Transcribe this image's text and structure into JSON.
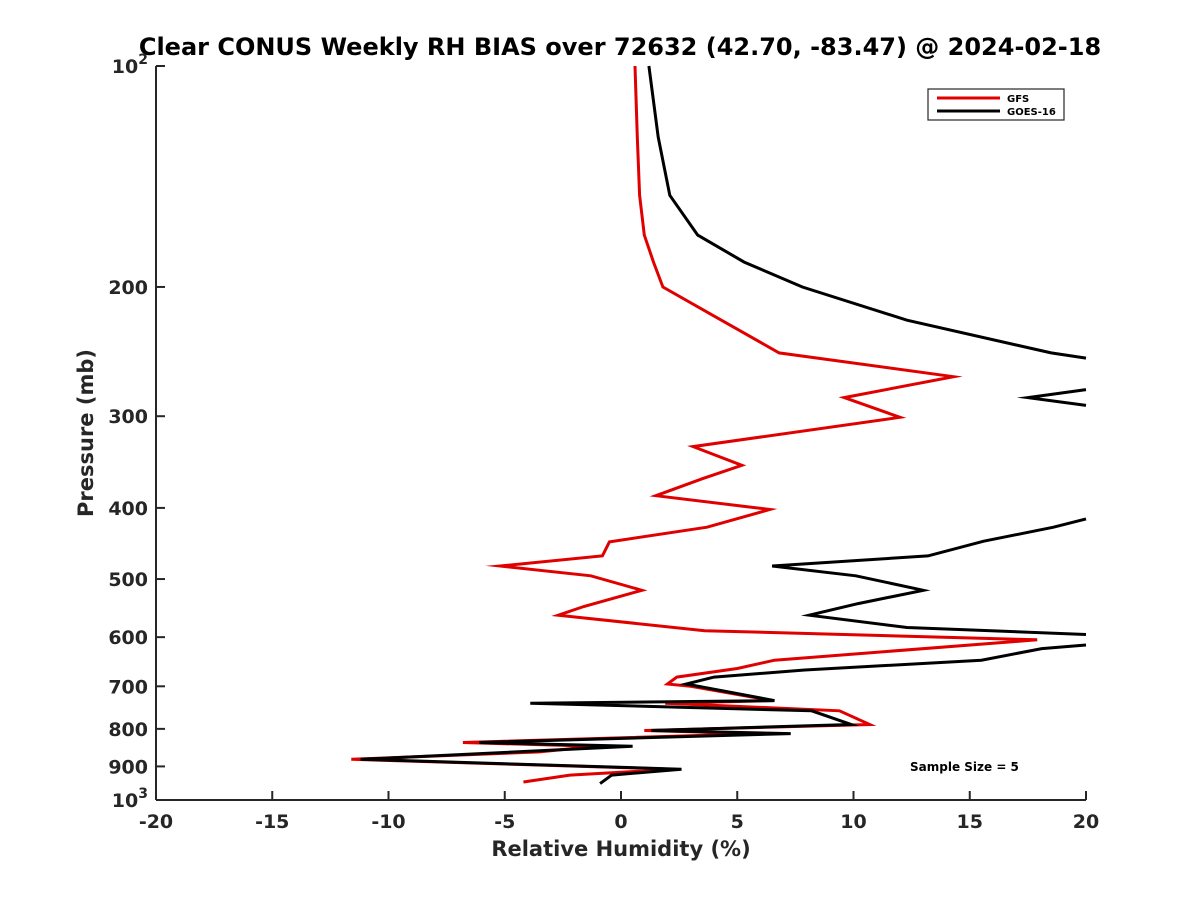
{
  "chart_data": {
    "type": "line",
    "title": "Clear CONUS Weekly RH BIAS over 72632 (42.70, -83.47) @ 2024-02-18",
    "xlabel": "Relative Humidity (%)",
    "ylabel": "Pressure (mb)",
    "xlim": [
      -20,
      20
    ],
    "ylim": [
      100,
      1000
    ],
    "y_scale": "log",
    "y_reversed": true,
    "grid": false,
    "legend_position": "top-right",
    "x_ticks": [
      {
        "value": -20,
        "label": "-20"
      },
      {
        "value": -15,
        "label": "-15"
      },
      {
        "value": -10,
        "label": "-10"
      },
      {
        "value": -5,
        "label": "-5"
      },
      {
        "value": 0,
        "label": "0"
      },
      {
        "value": 5,
        "label": "5"
      },
      {
        "value": 10,
        "label": "10"
      },
      {
        "value": 15,
        "label": "15"
      },
      {
        "value": 20,
        "label": "20"
      }
    ],
    "y_ticks": [
      {
        "value": 100,
        "label": "10",
        "sup": "2"
      },
      {
        "value": 200,
        "label": "200"
      },
      {
        "value": 300,
        "label": "300"
      },
      {
        "value": 400,
        "label": "400"
      },
      {
        "value": 500,
        "label": "500"
      },
      {
        "value": 600,
        "label": "600"
      },
      {
        "value": 700,
        "label": "700"
      },
      {
        "value": 800,
        "label": "800"
      },
      {
        "value": 900,
        "label": "900"
      },
      {
        "value": 1000,
        "label": "10",
        "sup": "3"
      }
    ],
    "series": [
      {
        "name": "GFS",
        "color": "#e00000",
        "points": [
          [
            0.6,
            100
          ],
          [
            0.7,
            125
          ],
          [
            0.8,
            150
          ],
          [
            1.0,
            170
          ],
          [
            1.4,
            185
          ],
          [
            1.8,
            200
          ],
          [
            4.1,
            220
          ],
          [
            6.8,
            246
          ],
          [
            14.3,
            265
          ],
          [
            9.6,
            283
          ],
          [
            12.0,
            301
          ],
          [
            3.1,
            330
          ],
          [
            5.2,
            350
          ],
          [
            3.5,
            365
          ],
          [
            1.5,
            385
          ],
          [
            6.4,
            402
          ],
          [
            3.7,
            425
          ],
          [
            -0.5,
            445
          ],
          [
            -0.8,
            465
          ],
          [
            -5.2,
            480
          ],
          [
            -1.3,
            495
          ],
          [
            0.9,
            518
          ],
          [
            -1.6,
            545
          ],
          [
            -2.7,
            560
          ],
          [
            3.6,
            588
          ],
          [
            17.9,
            605
          ],
          [
            6.6,
            645
          ],
          [
            5.0,
            662
          ],
          [
            2.4,
            680
          ],
          [
            2.0,
            695
          ],
          [
            3.0,
            700
          ],
          [
            6.5,
            732
          ],
          [
            1.9,
            738
          ],
          [
            9.4,
            756
          ],
          [
            10.7,
            789
          ],
          [
            1.0,
            804
          ],
          [
            6.0,
            812
          ],
          [
            -6.8,
            835
          ],
          [
            -1.1,
            845
          ],
          [
            -3.5,
            860
          ],
          [
            -11.6,
            880
          ],
          [
            2.3,
            908
          ],
          [
            -2.2,
            925
          ],
          [
            -4.2,
            945
          ]
        ]
      },
      {
        "name": "GOES-16",
        "color": "#000000",
        "points": [
          [
            1.2,
            100
          ],
          [
            1.6,
            125
          ],
          [
            2.1,
            150
          ],
          [
            3.3,
            170
          ],
          [
            5.3,
            185
          ],
          [
            7.8,
            200
          ],
          [
            12.3,
            222
          ],
          [
            18.5,
            246
          ],
          [
            20.0,
            250
          ]
        ]
      },
      {
        "name": "GOES-16",
        "color": "#000000",
        "points": [
          [
            20.0,
            276
          ],
          [
            17.5,
            283
          ],
          [
            20.0,
            290
          ]
        ]
      },
      {
        "name": "GOES-16",
        "color": "#000000",
        "points": [
          [
            20.0,
            414
          ],
          [
            18.6,
            425
          ],
          [
            15.6,
            444
          ],
          [
            13.2,
            465
          ],
          [
            6.5,
            480
          ],
          [
            10.1,
            495
          ],
          [
            13.0,
            518
          ],
          [
            10.2,
            540
          ],
          [
            8.1,
            560
          ],
          [
            12.3,
            582
          ],
          [
            20.0,
            595
          ]
        ]
      },
      {
        "name": "GOES-16",
        "color": "#000000",
        "points": [
          [
            20.0,
            615
          ],
          [
            18.1,
            622
          ],
          [
            15.5,
            645
          ],
          [
            7.9,
            665
          ],
          [
            4.0,
            680
          ],
          [
            2.8,
            695
          ],
          [
            6.6,
            732
          ],
          [
            -3.9,
            738
          ],
          [
            8.2,
            756
          ],
          [
            9.9,
            789
          ],
          [
            1.3,
            804
          ],
          [
            7.3,
            812
          ],
          [
            -6.1,
            835
          ],
          [
            0.5,
            845
          ],
          [
            -11.2,
            880
          ],
          [
            2.6,
            908
          ],
          [
            -0.4,
            925
          ],
          [
            -0.9,
            950
          ]
        ]
      }
    ],
    "legend": [
      {
        "name": "GFS",
        "color": "#e00000"
      },
      {
        "name": "GOES-16",
        "color": "#000000"
      }
    ],
    "annotation": "Sample Size = 5"
  }
}
